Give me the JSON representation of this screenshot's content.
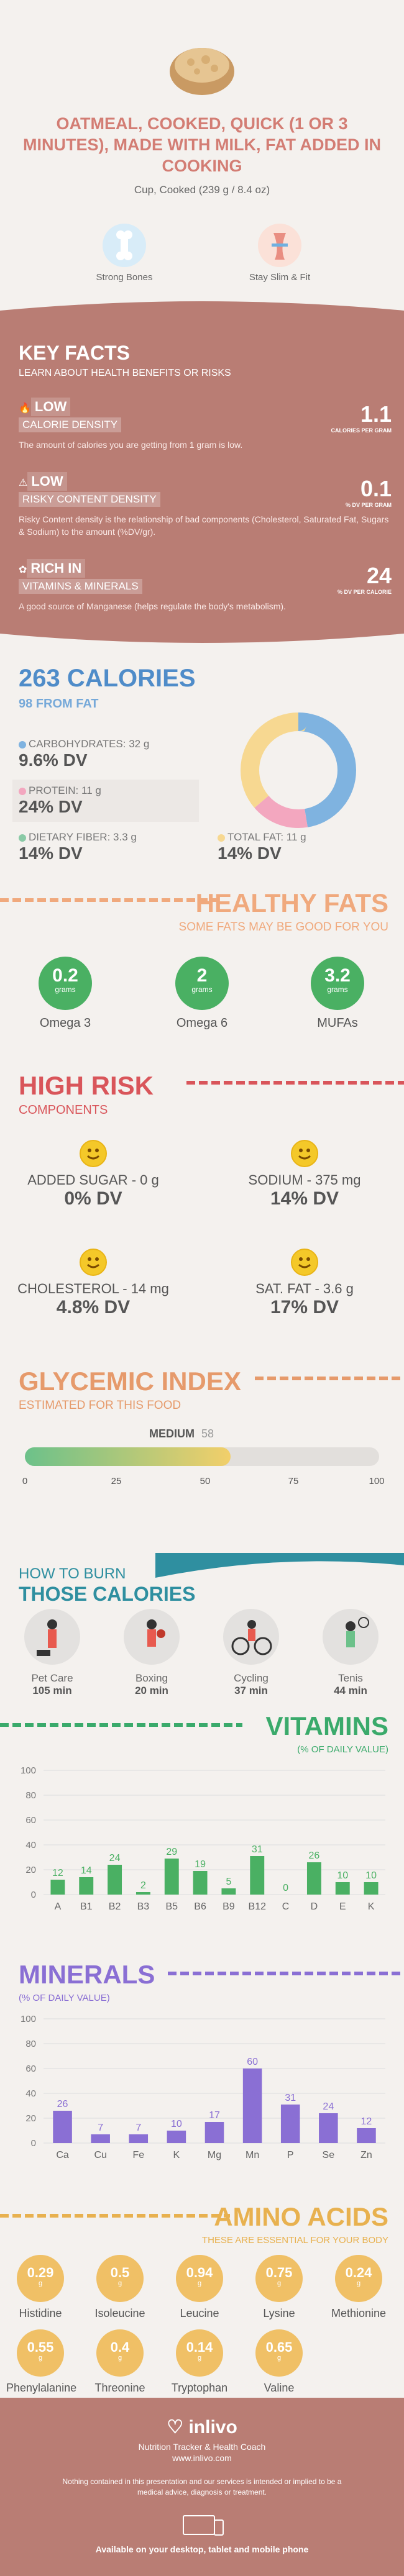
{
  "header": {
    "title": "OATMEAL, COOKED, QUICK (1 OR 3 MINUTES), MADE WITH MILK, FAT ADDED IN COOKING",
    "serving": "Cup, Cooked (239 g / 8.4 oz)",
    "badges": [
      {
        "label": "Strong Bones",
        "icon": "bone-icon"
      },
      {
        "label": "Stay Slim & Fit",
        "icon": "slim-body-icon"
      }
    ]
  },
  "key_facts": {
    "title": "KEY FACTS",
    "subtitle": "LEARN ABOUT HEALTH BENEFITS OR RISKS",
    "items": [
      {
        "level": "LOW",
        "name": "CALORIE DENSITY",
        "value": "1.1",
        "unit": "CALORIES PER GRAM",
        "desc": "The amount of calories you are getting from 1 gram is low.",
        "icon": "flame-icon"
      },
      {
        "level": "LOW",
        "name": "RISKY CONTENT DENSITY",
        "value": "0.1",
        "unit": "% DV PER GRAM",
        "desc": "Risky Content density is the relationship of bad components (Cholesterol, Saturated Fat, Sugars & Sodium) to the amount (%DV/gr).",
        "icon": "warning-icon"
      },
      {
        "level": "RICH IN",
        "name": "VITAMINS & MINERALS",
        "value": "24",
        "unit": "% DV PER CALORIE",
        "desc": "A good source of Manganese (helps regulate the body's metabolism).",
        "icon": "leaf-icon"
      }
    ]
  },
  "calories": {
    "total": "263 CALORIES",
    "from_fat": "98 FROM FAT",
    "carbs": {
      "label": "CARBOHYDRATES: 32 g",
      "dv": "9.6% DV"
    },
    "protein": {
      "label": "PROTEIN: 11 g",
      "dv": "24% DV"
    },
    "fiber": {
      "label": "DIETARY FIBER: 3.3 g",
      "dv": "14% DV"
    },
    "fat": {
      "label": "TOTAL FAT: 11 g",
      "dv": "14% DV"
    },
    "donut": [
      {
        "name": "carbs",
        "value": 128,
        "color": "#7fb3e0"
      },
      {
        "name": "protein",
        "value": 44,
        "color": "#f3a7bf"
      },
      {
        "name": "fat",
        "value": 98,
        "color": "#f7d891"
      }
    ]
  },
  "healthy_fats": {
    "title": "HEALTHY FATS",
    "subtitle": "SOME FATS MAY BE GOOD FOR YOU",
    "items": [
      {
        "value": "0.2",
        "unit": "grams",
        "label": "Omega 3"
      },
      {
        "value": "2",
        "unit": "grams",
        "label": "Omega 6"
      },
      {
        "value": "3.2",
        "unit": "grams",
        "label": "MUFAs"
      }
    ]
  },
  "high_risk": {
    "title": "HIGH RISK",
    "subtitle": "COMPONENTS",
    "items": [
      {
        "label": "ADDED SUGAR - 0 g",
        "dv": "0% DV"
      },
      {
        "label": "SODIUM - 375 mg",
        "dv": "14% DV"
      },
      {
        "label": "CHOLESTEROL - 14 mg",
        "dv": "4.8% DV"
      },
      {
        "label": "SAT. FAT - 3.6 g",
        "dv": "17% DV"
      }
    ]
  },
  "glycemic": {
    "title": "GLYCEMIC INDEX",
    "subtitle": "ESTIMATED FOR THIS FOOD",
    "level": "MEDIUM",
    "value": "58",
    "value_num": 58,
    "ticks": [
      "0",
      "25",
      "50",
      "75",
      "100"
    ]
  },
  "burn": {
    "title1": "HOW TO BURN",
    "title2": "THOSE CALORIES",
    "items": [
      {
        "label": "Pet Care",
        "time": "105 min",
        "icon": "pet-care-icon"
      },
      {
        "label": "Boxing",
        "time": "20 min",
        "icon": "boxing-icon"
      },
      {
        "label": "Cycling",
        "time": "37 min",
        "icon": "cycling-icon"
      },
      {
        "label": "Tenis",
        "time": "44 min",
        "icon": "tennis-icon"
      }
    ]
  },
  "chart_data": [
    {
      "type": "bar",
      "title": "VITAMINS",
      "subtitle": "(% OF DAILY VALUE)",
      "categories": [
        "A",
        "B1",
        "B2",
        "B3",
        "B5",
        "B6",
        "B9",
        "B12",
        "C",
        "D",
        "E",
        "K"
      ],
      "values": [
        12,
        14,
        24,
        2,
        29,
        19,
        5,
        31,
        0,
        26,
        10,
        10
      ],
      "ylim": [
        0,
        100
      ],
      "yticks": [
        "0",
        "20",
        "40",
        "60",
        "80",
        "100"
      ],
      "color": "#4ab063"
    },
    {
      "type": "bar",
      "title": "MINERALS",
      "subtitle": "(% OF DAILY VALUE)",
      "categories": [
        "Ca",
        "Cu",
        "Fe",
        "K",
        "Mg",
        "Mn",
        "P",
        "Se",
        "Zn"
      ],
      "values": [
        26,
        7,
        7,
        10,
        17,
        60,
        31,
        24,
        12
      ],
      "ylim": [
        0,
        100
      ],
      "yticks": [
        "0",
        "20",
        "40",
        "60",
        "80",
        "100"
      ],
      "color": "#8a6fd4"
    }
  ],
  "amino": {
    "title": "AMINO ACIDS",
    "subtitle": "THESE ARE ESSENTIAL FOR YOUR BODY",
    "unit": "g",
    "items": [
      {
        "value": "0.29",
        "label": "Histidine"
      },
      {
        "value": "0.5",
        "label": "Isoleucine"
      },
      {
        "value": "0.94",
        "label": "Leucine"
      },
      {
        "value": "0.75",
        "label": "Lysine"
      },
      {
        "value": "0.24",
        "label": "Methionine"
      },
      {
        "value": "0.55",
        "label": "Phenylalanine"
      },
      {
        "value": "0.4",
        "label": "Threonine"
      },
      {
        "value": "0.14",
        "label": "Tryptophan"
      },
      {
        "value": "0.65",
        "label": "Valine"
      }
    ]
  },
  "footer": {
    "brand": "inlivo",
    "tagline": "Nutrition Tracker & Health Coach",
    "url": "www.inlivo.com",
    "disclaimer": "Nothing contained in this presentation and our services is intended or implied to be a medical advice, diagnosis or treatment.",
    "available": "Available on your desktop, tablet and mobile phone"
  }
}
